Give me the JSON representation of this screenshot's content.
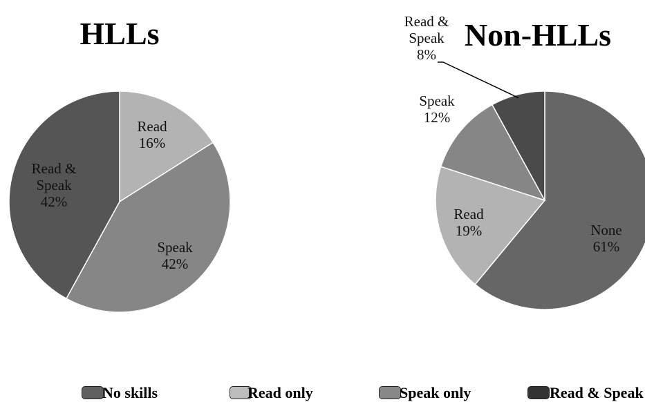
{
  "chart_data": [
    {
      "type": "pie",
      "title": "HLLs",
      "categories": [
        "Read",
        "Speak",
        "Read & Speak"
      ],
      "values": [
        16,
        42,
        42
      ],
      "value_labels": [
        "16%",
        "42%",
        "42%"
      ],
      "colors": [
        "#b3b3b3",
        "#868686",
        "#555555"
      ]
    },
    {
      "type": "pie",
      "title": "Non-HLLs",
      "categories": [
        "None",
        "Read",
        "Speak",
        "Read & Speak"
      ],
      "values": [
        61,
        19,
        12,
        8
      ],
      "value_labels": [
        "61%",
        "19%",
        "12%",
        "8%"
      ],
      "colors": [
        "#666666",
        "#b3b3b3",
        "#868686",
        "#4a4a4a"
      ]
    }
  ],
  "legend": {
    "labels": [
      "No skills",
      "Read only",
      "Speak only",
      "Read & Speak"
    ],
    "colors": [
      "#606060",
      "#bdbdbd",
      "#888888",
      "#333333"
    ]
  }
}
